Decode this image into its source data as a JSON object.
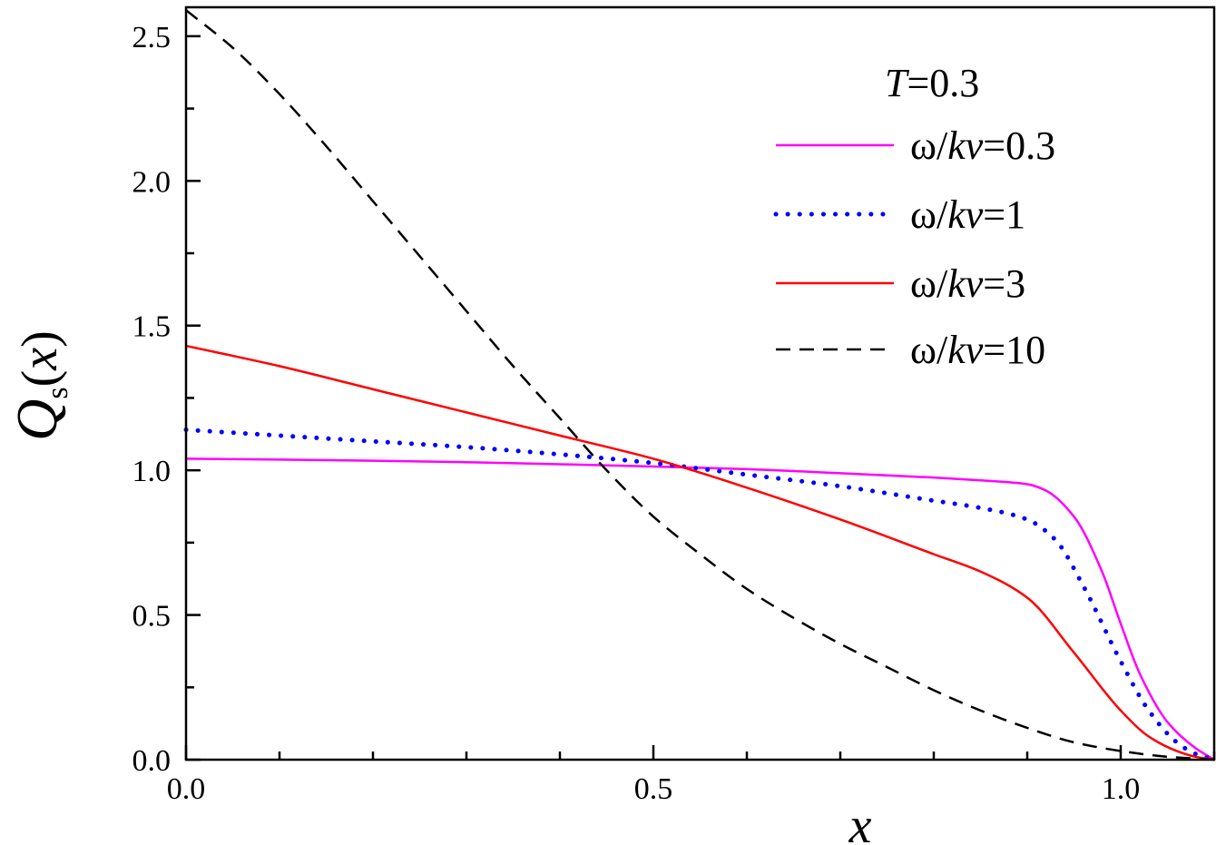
{
  "chart_data": {
    "type": "line",
    "xlabel": "x",
    "ylabel": "Q_s(x)",
    "ylabel_parts": {
      "main": "Q",
      "sub": "s",
      "arg_open": "(",
      "arg": "x",
      "arg_close": ")"
    },
    "xlim": [
      0,
      1.1
    ],
    "ylim": [
      0,
      2.6
    ],
    "x_ticks": [
      0.0,
      0.5,
      1.0
    ],
    "x_tick_labels": [
      "0.0",
      "0.5",
      "1.0"
    ],
    "y_ticks": [
      0.0,
      0.5,
      1.0,
      1.5,
      2.0,
      2.5
    ],
    "y_tick_labels": [
      "0.0",
      "0.5",
      "1.0",
      "1.5",
      "2.0",
      "2.5"
    ],
    "grid": false,
    "legend_position": "top-right",
    "legend_title": {
      "var": "T",
      "rest": "=0.3"
    },
    "series": [
      {
        "name": "ω/kv=0.3",
        "label_parts": {
          "pre": "ω/",
          "var": "kv",
          "post": "=0.3"
        },
        "color": "#ff00ff",
        "dash": "solid",
        "x": [
          0,
          0.1,
          0.2,
          0.3,
          0.4,
          0.5,
          0.6,
          0.7,
          0.8,
          0.85,
          0.9,
          0.92,
          0.95,
          0.98,
          1.0,
          1.02,
          1.05,
          1.08,
          1.1
        ],
        "y": [
          1.04,
          1.037,
          1.033,
          1.028,
          1.021,
          1.013,
          1.004,
          0.99,
          0.975,
          0.965,
          0.952,
          0.93,
          0.84,
          0.65,
          0.47,
          0.3,
          0.13,
          0.04,
          0.0
        ]
      },
      {
        "name": "ω/kv=1",
        "label_parts": {
          "pre": "ω/",
          "var": "kv",
          "post": "=1"
        },
        "color": "#0000ff",
        "dash": "dotted",
        "x": [
          0,
          0.1,
          0.2,
          0.3,
          0.4,
          0.5,
          0.6,
          0.7,
          0.8,
          0.85,
          0.9,
          0.93,
          0.96,
          1.0,
          1.03,
          1.06,
          1.08,
          1.1
        ],
        "y": [
          1.14,
          1.12,
          1.1,
          1.08,
          1.055,
          1.025,
          0.985,
          0.945,
          0.895,
          0.87,
          0.83,
          0.76,
          0.6,
          0.34,
          0.17,
          0.06,
          0.02,
          0.0
        ]
      },
      {
        "name": "ω/kv=3",
        "label_parts": {
          "pre": "ω/",
          "var": "kv",
          "post": "=3"
        },
        "color": "#ff0000",
        "dash": "solid",
        "x": [
          0,
          0.1,
          0.2,
          0.3,
          0.4,
          0.5,
          0.6,
          0.7,
          0.8,
          0.85,
          0.9,
          0.95,
          1.0,
          1.03,
          1.06,
          1.08,
          1.1
        ],
        "y": [
          1.43,
          1.36,
          1.28,
          1.2,
          1.12,
          1.04,
          0.94,
          0.83,
          0.71,
          0.65,
          0.56,
          0.37,
          0.17,
          0.08,
          0.03,
          0.01,
          0.0
        ]
      },
      {
        "name": "ω/kv=10",
        "label_parts": {
          "pre": "ω/",
          "var": "kv",
          "post": "=10"
        },
        "color": "#000000",
        "dash": "dashed",
        "x": [
          0,
          0.05,
          0.1,
          0.15,
          0.2,
          0.25,
          0.3,
          0.35,
          0.4,
          0.45,
          0.5,
          0.55,
          0.6,
          0.65,
          0.7,
          0.75,
          0.8,
          0.85,
          0.9,
          0.95,
          1.0,
          1.05,
          1.1
        ],
        "y": [
          2.59,
          2.46,
          2.3,
          2.12,
          1.93,
          1.74,
          1.55,
          1.36,
          1.18,
          1.0,
          0.84,
          0.71,
          0.59,
          0.49,
          0.4,
          0.32,
          0.24,
          0.17,
          0.11,
          0.06,
          0.03,
          0.01,
          0.0
        ]
      }
    ]
  }
}
